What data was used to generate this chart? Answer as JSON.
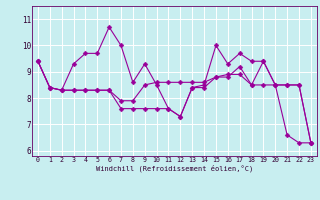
{
  "xlabel": "Windchill (Refroidissement éolien,°C)",
  "line_color": "#990099",
  "bg_color": "#c8eef0",
  "grid_color": "#ffffff",
  "lines": [
    [
      9.4,
      8.4,
      8.3,
      9.3,
      9.7,
      9.7,
      10.7,
      10.0,
      8.6,
      9.3,
      8.5,
      7.6,
      7.3,
      8.4,
      8.5,
      10.0,
      9.3,
      9.7,
      9.4,
      9.4,
      8.5,
      6.6,
      6.3,
      6.3
    ],
    [
      9.4,
      8.4,
      8.3,
      8.3,
      8.3,
      8.3,
      8.3,
      7.9,
      7.9,
      8.5,
      8.6,
      8.6,
      8.6,
      8.6,
      8.6,
      8.8,
      8.8,
      9.2,
      8.5,
      9.4,
      8.5,
      8.5,
      8.5,
      6.3
    ],
    [
      9.4,
      8.4,
      8.3,
      8.3,
      8.3,
      8.3,
      8.3,
      7.6,
      7.6,
      7.6,
      7.6,
      7.6,
      7.3,
      8.4,
      8.4,
      8.8,
      8.9,
      8.9,
      8.5,
      8.5,
      8.5,
      8.5,
      8.5,
      6.3
    ]
  ],
  "xlim": [
    -0.5,
    23.5
  ],
  "ylim": [
    5.8,
    11.5
  ],
  "xticks": [
    0,
    1,
    2,
    3,
    4,
    5,
    6,
    7,
    8,
    9,
    10,
    11,
    12,
    13,
    14,
    15,
    16,
    17,
    18,
    19,
    20,
    21,
    22,
    23
  ],
  "yticks": [
    6,
    7,
    8,
    9,
    10,
    11
  ],
  "top_ytick": 11
}
